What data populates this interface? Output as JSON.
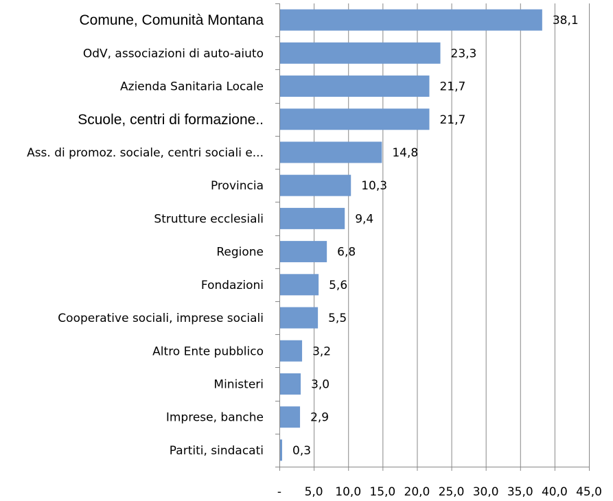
{
  "chart_data": {
    "type": "bar",
    "orientation": "horizontal",
    "categories": [
      "Comune, Comunità Montana",
      "OdV, associazioni di auto-aiuto",
      "Azienda Sanitaria Locale",
      "Scuole, centri di formazione..",
      "Ass. di promoz. sociale, centri sociali e...",
      "Provincia",
      "Strutture ecclesiali",
      "Regione",
      "Fondazioni",
      "Cooperative sociali, imprese sociali",
      "Altro Ente pubblico",
      "Ministeri",
      "Imprese, banche",
      "Partiti, sindacati"
    ],
    "values": [
      38.1,
      23.3,
      21.7,
      21.7,
      14.8,
      10.3,
      9.4,
      6.8,
      5.6,
      5.5,
      3.2,
      3.0,
      2.9,
      0.3
    ],
    "value_labels": [
      "38,1",
      "23,3",
      "21,7",
      "21,7",
      "14,8",
      "10,3",
      "9,4",
      "6,8",
      "5,6",
      "5,5",
      "3,2",
      "3,0",
      "2,9",
      "0,3"
    ],
    "xlim": [
      0,
      45
    ],
    "x_ticks": [
      0,
      5,
      10,
      15,
      20,
      25,
      30,
      35,
      40,
      45
    ],
    "x_tick_labels": [
      "-",
      "5,0",
      "10,0",
      "15,0",
      "20,0",
      "25,0",
      "30,0",
      "35,0",
      "40,0",
      "45,0"
    ],
    "title": "",
    "xlabel": "",
    "ylabel": "",
    "grid": "vertical",
    "legend": "none",
    "colors": {
      "bar": "#6f99cf",
      "grid": "#878787",
      "axis": "#878787",
      "text": "#000000"
    }
  }
}
